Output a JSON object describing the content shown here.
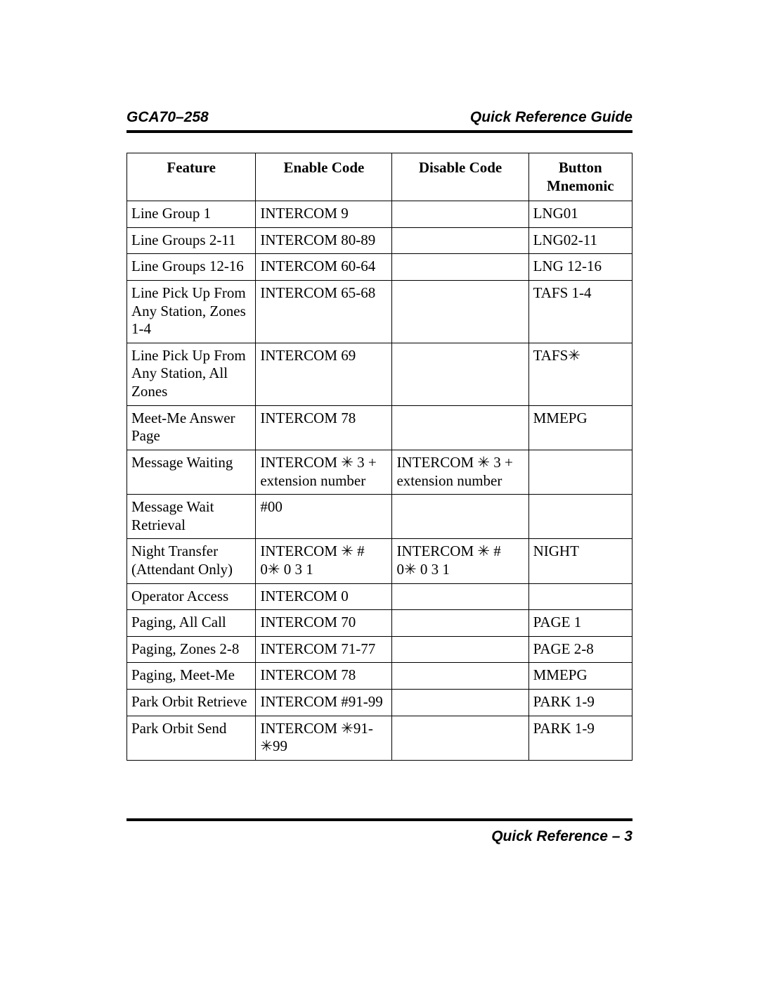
{
  "header": {
    "left": "GCA70–258",
    "right": "Quick Reference Guide"
  },
  "footer": {
    "text": "Quick Reference – 3"
  },
  "table": {
    "columns": [
      "Feature",
      "Enable Code",
      "Disable Code",
      "Button Mnemonic"
    ],
    "column_widths_pct": [
      25.5,
      27,
      27,
      20.5
    ],
    "fontsize_pt": 16,
    "border_color": "#000000",
    "rows": [
      [
        "Line Group 1",
        "INTERCOM 9",
        "",
        "LNG01"
      ],
      [
        "Line Groups 2-11",
        "INTERCOM 80-89",
        "",
        "LNG02-11"
      ],
      [
        "Line Groups 12-16",
        "INTERCOM 60-64",
        "",
        "LNG 12-16"
      ],
      [
        "Line Pick Up From Any Station, Zones 1-4",
        "INTERCOM 65-68",
        "",
        "TAFS 1-4"
      ],
      [
        "Line Pick Up From Any Station, All Zones",
        "INTERCOM 69",
        "",
        "TAFS✳"
      ],
      [
        "Meet-Me Answer Page",
        "INTERCOM 78",
        "",
        "MMEPG"
      ],
      [
        "Message Waiting",
        "INTERCOM ✳ 3 + extension number",
        "INTERCOM ✳ 3 + extension number",
        ""
      ],
      [
        "Message Wait Retrieval",
        "#00",
        "",
        ""
      ],
      [
        "Night Transfer (Attendant Only)",
        "INTERCOM ✳ # 0✳ 0 3 1",
        "INTERCOM ✳ # 0✳ 0 3 1",
        "NIGHT"
      ],
      [
        "Operator Access",
        "INTERCOM 0",
        "",
        ""
      ],
      [
        "Paging, All Call",
        "INTERCOM 70",
        "",
        "PAGE 1"
      ],
      [
        "Paging, Zones 2-8",
        "INTERCOM 71-77",
        "",
        "PAGE 2-8"
      ],
      [
        "Paging, Meet-Me",
        "INTERCOM 78",
        "",
        "MMEPG"
      ],
      [
        "Park Orbit Retrieve",
        "INTERCOM #91-99",
        "",
        "PARK 1-9"
      ],
      [
        "Park Orbit Send",
        "INTERCOM ✳91-✳99",
        "",
        "PARK 1-9"
      ]
    ]
  }
}
